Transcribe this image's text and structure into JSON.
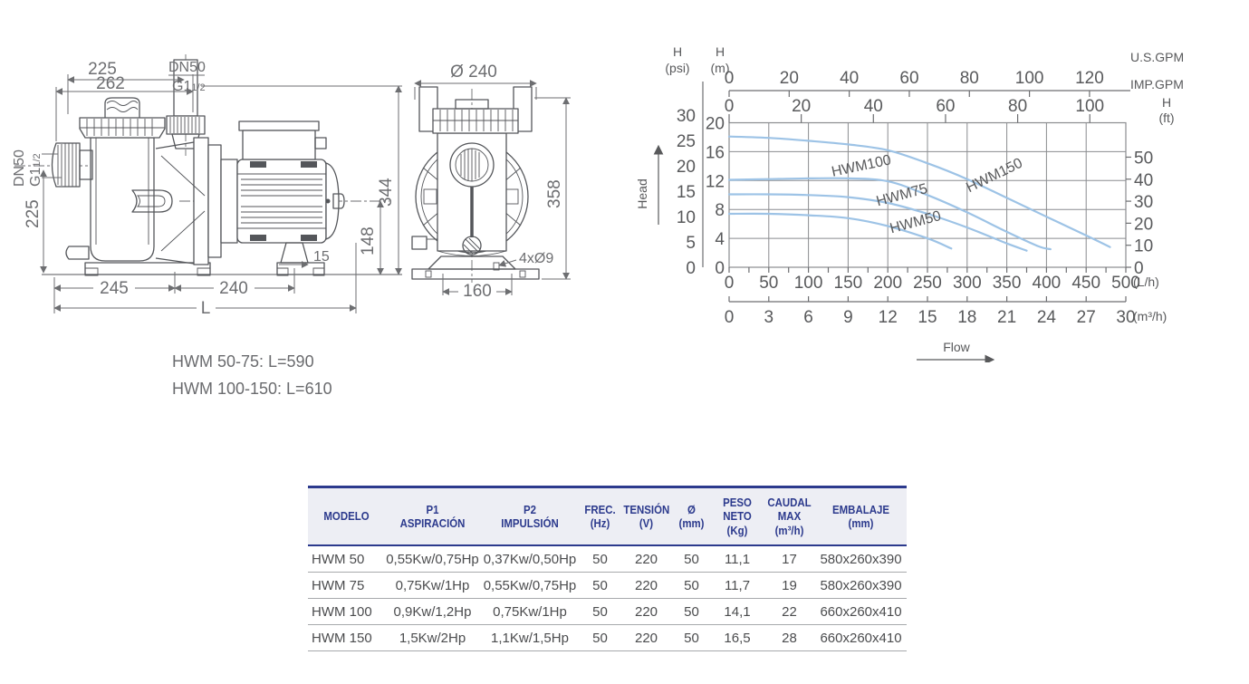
{
  "drawings": {
    "side": {
      "dim_width_top": "225",
      "dim_width_total_top": "262",
      "port_label": "DN50",
      "thread_label": "G1",
      "thread_frac": "1/2",
      "dim_height_left": "225",
      "dim_height_total": "344",
      "dim_height_shaft": "148",
      "dim_foot_offset": "15",
      "dim_base_left": "245",
      "dim_base_right": "240",
      "dim_length": "L"
    },
    "front": {
      "dim_diameter": "Ø 240",
      "dim_height": "358",
      "dim_holes": "4xØ9",
      "dim_base_width": "160"
    },
    "notes": [
      "HWM 50-75: L=590",
      "HWM 100-150: L=610"
    ]
  },
  "chart_data": {
    "type": "line",
    "title": "",
    "xlabel": "Flow",
    "ylabel": "Head",
    "grid": true,
    "x_primary": {
      "unit": "(L/h)",
      "max": 500,
      "ticks": [
        0,
        50,
        100,
        150,
        200,
        250,
        300,
        350,
        400,
        450,
        500
      ]
    },
    "x_secondary": {
      "unit": "(m³/h)",
      "max": 30,
      "ticks": [
        0,
        3,
        6,
        9,
        12,
        15,
        18,
        21,
        24,
        27,
        30
      ]
    },
    "x_top_us": {
      "unit": "U.S.GPM",
      "ticks": [
        0,
        20,
        40,
        60,
        80,
        100,
        120
      ],
      "lh_per_unit": 3.78541
    },
    "x_top_imp": {
      "unit": "IMP.GPM",
      "ticks": [
        0,
        20,
        40,
        60,
        80,
        100
      ],
      "lh_per_unit": 4.54609
    },
    "y_m": {
      "unit_line1": "H",
      "unit_line2": "(m)",
      "max": 20,
      "ticks": [
        0,
        4,
        8,
        12,
        16,
        20
      ]
    },
    "y_psi": {
      "unit_line1": "H",
      "unit_line2": "(psi)",
      "ticks": [
        0,
        5,
        10,
        15,
        20,
        25,
        30
      ],
      "m_per_unit": 0.70307
    },
    "y_ft": {
      "unit_line1": "H",
      "unit_line2": "(ft)",
      "ticks": [
        0,
        10,
        20,
        30,
        40,
        50
      ],
      "m_per_unit": 0.3048
    },
    "head_arrow_label": "Head",
    "flow_arrow_label": "Flow",
    "curve_color": "#9dc3e6",
    "grid_color": "#8a8c8f",
    "text_color": "#58595b",
    "series": [
      {
        "name": "HWM150",
        "points": [
          [
            0,
            18.1
          ],
          [
            50,
            17.9
          ],
          [
            100,
            17.5
          ],
          [
            150,
            17.0
          ],
          [
            200,
            16.2
          ],
          [
            250,
            14.4
          ],
          [
            300,
            12.2
          ],
          [
            350,
            9.6
          ],
          [
            400,
            7.0
          ],
          [
            450,
            4.4
          ],
          [
            480,
            2.8
          ]
        ],
        "label_pos": [
          400,
          158
        ],
        "label_rot": -26
      },
      {
        "name": "HWM100",
        "points": [
          [
            0,
            12.1
          ],
          [
            50,
            12.2
          ],
          [
            100,
            12.3
          ],
          [
            150,
            12.3
          ],
          [
            200,
            11.9
          ],
          [
            250,
            10.0
          ],
          [
            300,
            7.6
          ],
          [
            350,
            4.9
          ],
          [
            390,
            2.9
          ],
          [
            405,
            2.5
          ]
        ],
        "label_pos": [
          252,
          148
        ],
        "label_rot": -12
      },
      {
        "name": "HWM75",
        "points": [
          [
            0,
            10.1
          ],
          [
            50,
            10.1
          ],
          [
            100,
            10.0
          ],
          [
            150,
            9.7
          ],
          [
            200,
            8.9
          ],
          [
            250,
            7.4
          ],
          [
            300,
            5.5
          ],
          [
            350,
            3.3
          ],
          [
            375,
            2.3
          ]
        ],
        "label_pos": [
          297,
          180
        ],
        "label_rot": -15
      },
      {
        "name": "HWM50",
        "points": [
          [
            0,
            7.4
          ],
          [
            50,
            7.4
          ],
          [
            100,
            7.2
          ],
          [
            150,
            6.8
          ],
          [
            200,
            5.7
          ],
          [
            250,
            4.0
          ],
          [
            280,
            2.6
          ]
        ],
        "label_pos": [
          312,
          210
        ],
        "label_rot": -15
      }
    ]
  },
  "table": {
    "columns": [
      {
        "lines": [
          "MODELO"
        ]
      },
      {
        "lines": [
          "P1",
          "ASPIRACIÓN"
        ]
      },
      {
        "lines": [
          "P2",
          "IMPULSIÓN"
        ]
      },
      {
        "lines": [
          "FREC.",
          "(Hz)"
        ]
      },
      {
        "lines": [
          "TENSIÓN",
          "(V)"
        ]
      },
      {
        "lines": [
          "Ø",
          "(mm)"
        ]
      },
      {
        "lines": [
          "PESO",
          "NETO",
          "(Kg)"
        ]
      },
      {
        "lines": [
          "CAUDAL",
          "MAX",
          "(m³/h)"
        ]
      },
      {
        "lines": [
          "EMBALAJE",
          "(mm)"
        ]
      }
    ],
    "rows": [
      [
        "HWM 50",
        "0,55Kw/0,75Hp",
        "0,37Kw/0,50Hp",
        "50",
        "220",
        "50",
        "11,1",
        "17",
        "580x260x390"
      ],
      [
        "HWM 75",
        "0,75Kw/1Hp",
        "0,55Kw/0,75Hp",
        "50",
        "220",
        "50",
        "11,7",
        "19",
        "580x260x390"
      ],
      [
        "HWM 100",
        "0,9Kw/1,2Hp",
        "0,75Kw/1Hp",
        "50",
        "220",
        "50",
        "14,1",
        "22",
        "660x260x410"
      ],
      [
        "HWM 150",
        "1,5Kw/2Hp",
        "1,1Kw/1,5Hp",
        "50",
        "220",
        "50",
        "16,5",
        "28",
        "660x260x410"
      ]
    ]
  }
}
